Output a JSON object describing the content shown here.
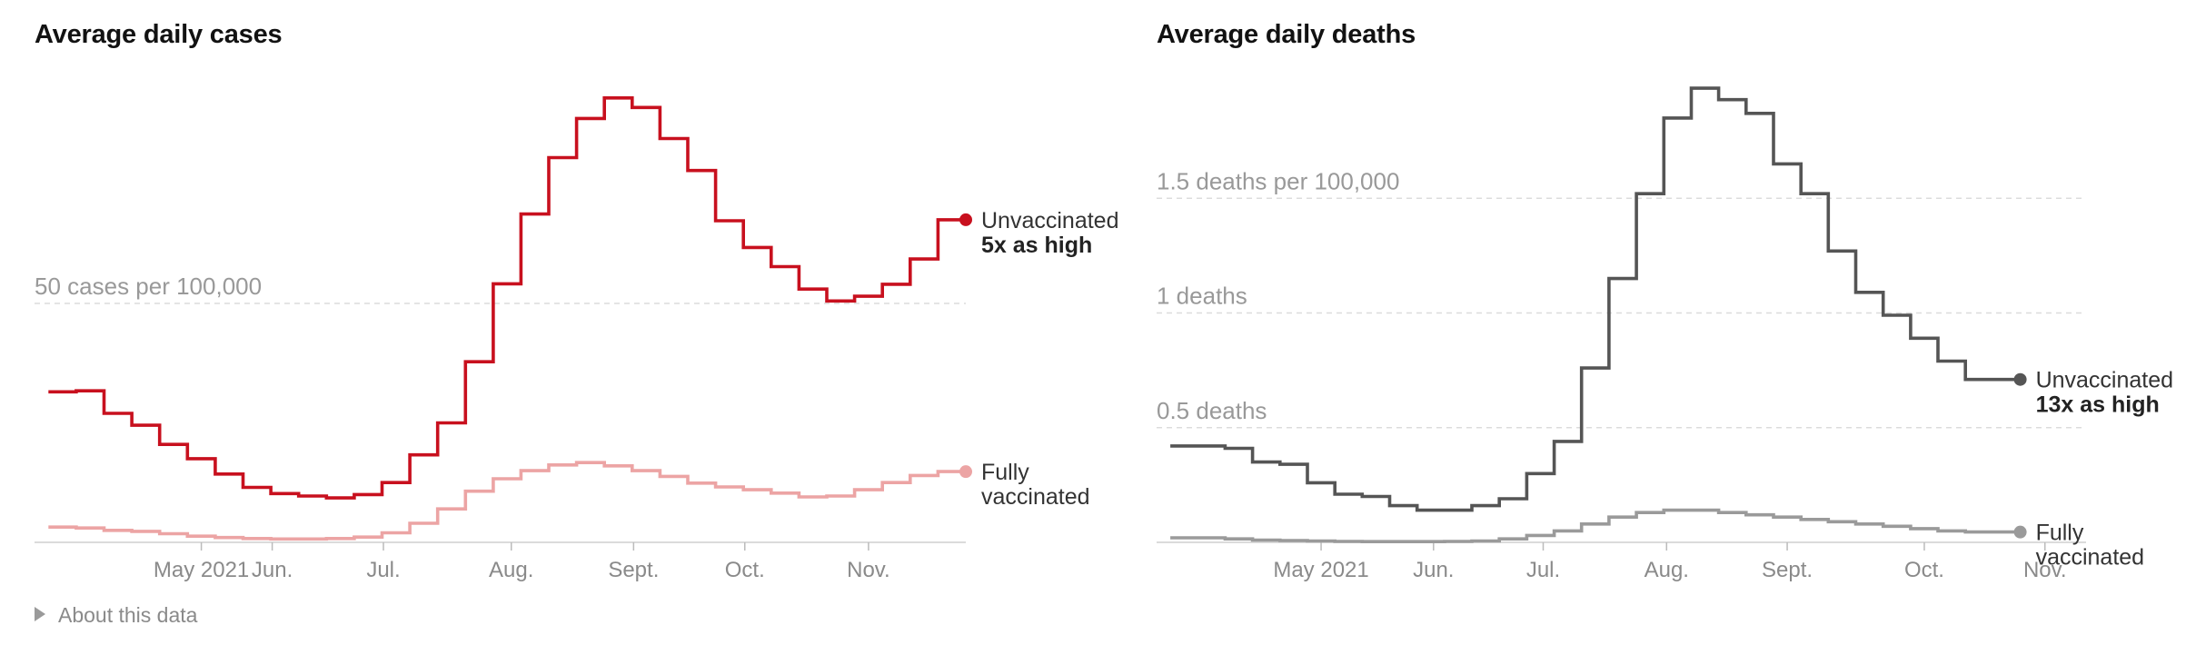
{
  "footer": {
    "about_label": "About this data"
  },
  "chart_data": [
    {
      "type": "line",
      "title": "Average daily cases",
      "unit": "cases per 100,000",
      "step": true,
      "x_labels": [
        "May 2021",
        "Jun.",
        "Jul.",
        "Aug.",
        "Sept.",
        "Oct.",
        "Nov."
      ],
      "x_label_pos": [
        5.0,
        7.55,
        11.55,
        16.15,
        20.55,
        24.55,
        29.0
      ],
      "xlim": [
        -1,
        32.5
      ],
      "ylim": [
        0,
        96
      ],
      "gridlines": [
        {
          "value": 50,
          "label": "50 cases per 100,000"
        }
      ],
      "series": [
        {
          "name": "Unvaccinated",
          "color": "#c8101e",
          "annotation": "5x as high",
          "values": [
            31.5,
            31.7,
            27,
            24.5,
            20.5,
            17.5,
            14.3,
            11.5,
            10.2,
            9.7,
            9.3,
            10,
            12.5,
            18.3,
            25,
            37.8,
            54.1,
            68.7,
            80.5,
            88.7,
            93,
            91,
            84.5,
            77.8,
            67.3,
            61.7,
            57.7,
            53,
            50.5,
            51.5,
            54,
            59.3,
            67.5
          ]
        },
        {
          "name": "Fully vaccinated",
          "color": "#eca4a4",
          "annotation": "",
          "values": [
            3.2,
            3,
            2.5,
            2.3,
            1.8,
            1.3,
            1,
            0.8,
            0.7,
            0.7,
            0.8,
            1.1,
            2,
            4,
            7,
            10.7,
            13.3,
            15,
            16.2,
            16.7,
            16,
            15,
            13.8,
            12.4,
            11.6,
            11,
            10.3,
            9.5,
            9.7,
            11,
            12.5,
            14,
            14.8
          ]
        }
      ]
    },
    {
      "type": "line",
      "title": "Average daily deaths",
      "unit": "deaths per 100,000",
      "step": true,
      "x_labels": [
        "May 2021",
        "Jun.",
        "Jul.",
        "Aug.",
        "Sept.",
        "Oct.",
        "Nov."
      ],
      "x_label_pos": [
        5.0,
        9.1,
        13.1,
        17.6,
        22.0,
        27.0,
        31.4
      ],
      "xlim": [
        -1,
        32.9
      ],
      "ylim": [
        0,
        2.0
      ],
      "gridlines": [
        {
          "value": 0.5,
          "label": "0.5 deaths"
        },
        {
          "value": 1.0,
          "label": "1 deaths"
        },
        {
          "value": 1.5,
          "label": "1.5 deaths per 100,000"
        }
      ],
      "series": [
        {
          "name": "Unvaccinated",
          "color": "#555555",
          "annotation": "13x as high",
          "values": [
            0.42,
            0.42,
            0.41,
            0.35,
            0.34,
            0.26,
            0.21,
            0.2,
            0.16,
            0.14,
            0.14,
            0.16,
            0.19,
            0.3,
            0.44,
            0.76,
            1.15,
            1.52,
            1.85,
            1.98,
            1.93,
            1.87,
            1.65,
            1.52,
            1.27,
            1.09,
            0.99,
            0.89,
            0.79,
            0.71,
            0.71
          ]
        },
        {
          "name": "Fully vaccinated",
          "color": "#9a9a9a",
          "annotation": "",
          "values": [
            0.02,
            0.02,
            0.015,
            0.01,
            0.008,
            0.006,
            0.004,
            0.003,
            0.003,
            0.003,
            0.004,
            0.006,
            0.015,
            0.03,
            0.05,
            0.08,
            0.11,
            0.13,
            0.14,
            0.14,
            0.13,
            0.12,
            0.11,
            0.1,
            0.09,
            0.08,
            0.07,
            0.06,
            0.05,
            0.045,
            0.045
          ]
        }
      ]
    }
  ]
}
